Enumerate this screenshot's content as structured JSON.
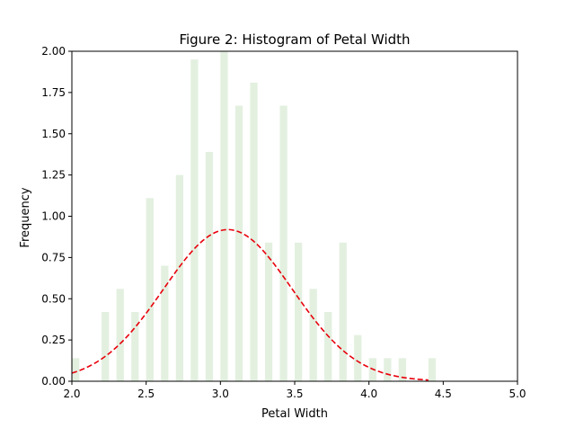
{
  "chart_data": {
    "type": "bar",
    "title": "Figure 2: Histogram of Petal Width",
    "xlabel": "Petal Width",
    "ylabel": "Frequency",
    "xlim": [
      2.0,
      5.0
    ],
    "ylim": [
      0.0,
      2.0
    ],
    "xticks": [
      2.0,
      2.5,
      3.0,
      3.5,
      4.0,
      4.5,
      5.0
    ],
    "xtick_labels": [
      "2.0",
      "2.5",
      "3.0",
      "3.5",
      "4.0",
      "4.5",
      "5.0"
    ],
    "yticks": [
      0.0,
      0.25,
      0.5,
      0.75,
      1.0,
      1.25,
      1.5,
      1.75,
      2.0
    ],
    "ytick_labels": [
      "0.00",
      "0.25",
      "0.50",
      "0.75",
      "1.00",
      "1.25",
      "1.50",
      "1.75",
      "2.00"
    ],
    "grid": false,
    "bar_color": "#e3f0e0",
    "bar_width": 0.05,
    "bars": [
      {
        "x": 2.0,
        "value": 0.14
      },
      {
        "x": 2.2,
        "value": 0.42
      },
      {
        "x": 2.3,
        "value": 0.56
      },
      {
        "x": 2.4,
        "value": 0.42
      },
      {
        "x": 2.5,
        "value": 1.11
      },
      {
        "x": 2.6,
        "value": 0.7
      },
      {
        "x": 2.7,
        "value": 1.25
      },
      {
        "x": 2.8,
        "value": 1.95
      },
      {
        "x": 2.9,
        "value": 1.39
      },
      {
        "x": 3.0,
        "value": 2.0
      },
      {
        "x": 3.1,
        "value": 1.67
      },
      {
        "x": 3.2,
        "value": 1.81
      },
      {
        "x": 3.3,
        "value": 0.84
      },
      {
        "x": 3.4,
        "value": 1.67
      },
      {
        "x": 3.5,
        "value": 0.84
      },
      {
        "x": 3.6,
        "value": 0.56
      },
      {
        "x": 3.7,
        "value": 0.42
      },
      {
        "x": 3.8,
        "value": 0.84
      },
      {
        "x": 3.9,
        "value": 0.28
      },
      {
        "x": 4.0,
        "value": 0.14
      },
      {
        "x": 4.1,
        "value": 0.14
      },
      {
        "x": 4.2,
        "value": 0.14
      },
      {
        "x": 4.4,
        "value": 0.14
      }
    ],
    "fit_curve": {
      "style": "dashed",
      "color": "#e8000b",
      "mean": 3.05,
      "std": 0.434,
      "x_range": [
        2.0,
        4.4
      ]
    }
  }
}
